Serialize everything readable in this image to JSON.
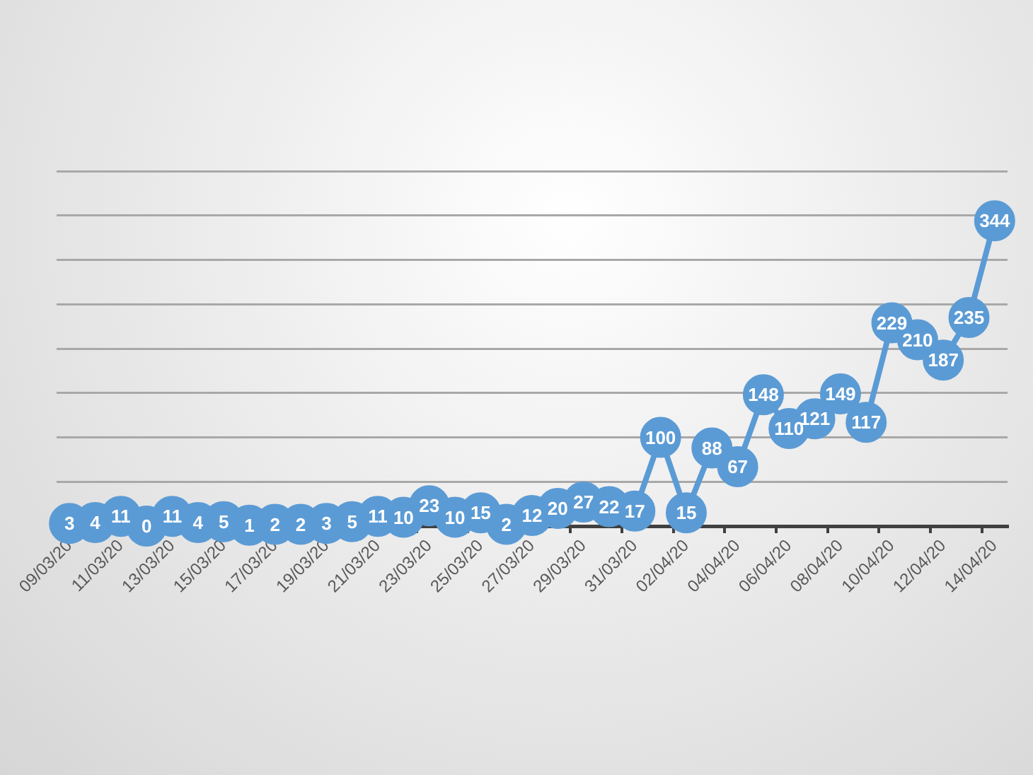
{
  "chart_data": {
    "type": "line",
    "categories": [
      "09/03/20",
      null,
      "11/03/20",
      null,
      "13/03/20",
      null,
      "15/03/20",
      null,
      "17/03/20",
      null,
      "19/03/20",
      null,
      "21/03/20",
      null,
      "23/03/20",
      null,
      "25/03/20",
      null,
      "27/03/20",
      null,
      "29/03/20",
      null,
      "31/03/20",
      null,
      "02/04/20",
      null,
      "04/04/20",
      null,
      "06/04/20",
      null,
      "08/04/20",
      null,
      "10/04/20",
      null,
      "12/04/20",
      null,
      "14/04/20"
    ],
    "series": [
      {
        "color": "#5b9bd5",
        "values": [
          3,
          4,
          11,
          0,
          11,
          4,
          5,
          1,
          2,
          2,
          3,
          5,
          11,
          10,
          23,
          10,
          15,
          2,
          12,
          20,
          27,
          22,
          17,
          100,
          15,
          88,
          67,
          148,
          110,
          121,
          149,
          117,
          229,
          210,
          187,
          235,
          344
        ]
      }
    ],
    "ylim": [
      0,
      400
    ],
    "yticks": [
      {
        "value": 0,
        "label": null
      },
      {
        "value": 50,
        "label": null
      },
      {
        "value": 100,
        "label": null
      },
      {
        "value": 150,
        "label": null
      },
      {
        "value": 200,
        "label": null
      },
      {
        "value": 250,
        "label": null
      },
      {
        "value": 300,
        "label": null
      },
      {
        "value": 350,
        "label": null
      },
      {
        "value": 400,
        "label": null
      }
    ],
    "grid": "y",
    "tick_labels": "x",
    "marker": "circle",
    "data_labels": true
  }
}
